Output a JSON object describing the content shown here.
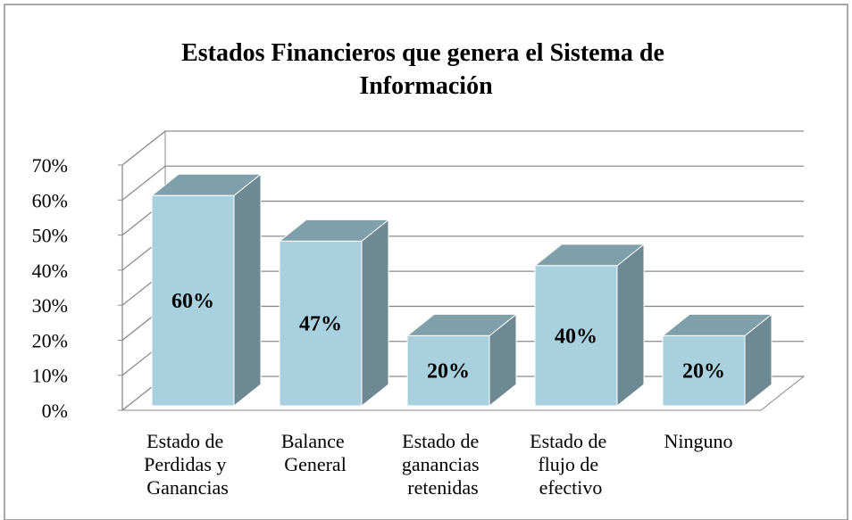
{
  "chart_data": {
    "type": "bar3d",
    "title": "Estados Financieros que genera el Sistema de Información",
    "categories": [
      "Estado de Perdidas y Ganancias",
      "Balance General",
      "Estado de ganancias retenidas",
      "Estado de flujo de efectivo",
      "Ninguno"
    ],
    "values": [
      60,
      47,
      20,
      40,
      20
    ],
    "value_labels": [
      "60%",
      "47%",
      "20%",
      "40%",
      "20%"
    ],
    "color": "#a9d0de",
    "ylim": [
      0,
      70
    ],
    "yticks": [
      {
        "value": 0,
        "label": "0%"
      },
      {
        "value": 10,
        "label": "10%"
      },
      {
        "value": 20,
        "label": "20%"
      },
      {
        "value": 30,
        "label": "30%"
      },
      {
        "value": 40,
        "label": "40%"
      },
      {
        "value": 50,
        "label": "50%"
      },
      {
        "value": 60,
        "label": "60%"
      },
      {
        "value": 70,
        "label": "70%"
      }
    ],
    "grid": true
  }
}
